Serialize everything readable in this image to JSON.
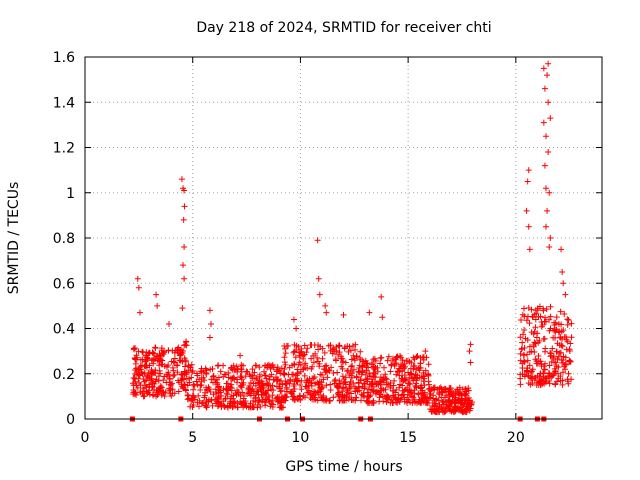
{
  "chart_data": {
    "type": "scatter",
    "title": "Day 218 of 2024, SRMTID for receiver chti",
    "xlabel": "GPS time / hours",
    "ylabel": "SRMTID / TECUs",
    "xlim": [
      0,
      24
    ],
    "ylim": [
      0,
      1.6
    ],
    "xticks": [
      0,
      5,
      10,
      15,
      20
    ],
    "yticks": [
      0,
      0.2,
      0.4,
      0.6,
      0.8,
      1,
      1.2,
      1.4,
      1.6
    ],
    "ytick_labels": [
      "0",
      "0.2",
      "0.4",
      "0.6",
      "0.8",
      "1",
      "1.2",
      "1.4",
      "1.6"
    ],
    "grid": true,
    "marker": "+",
    "color": "#ff0000",
    "baseline_markers_x": [
      2.2,
      4.45,
      8.1,
      9.4,
      10.1,
      12.8,
      13.25,
      20.2,
      21.0,
      21.3
    ],
    "clusters": [
      {
        "x_start": 2.2,
        "x_end": 4.4,
        "y_low": 0.1,
        "y_high": 0.32,
        "count": 220,
        "spikes": [
          [
            2.45,
            0.62
          ],
          [
            2.5,
            0.58
          ],
          [
            2.55,
            0.47
          ],
          [
            3.3,
            0.55
          ],
          [
            3.35,
            0.5
          ],
          [
            3.9,
            0.42
          ]
        ]
      },
      {
        "x_start": 4.4,
        "x_end": 4.75,
        "y_low": 0.12,
        "y_high": 0.35,
        "count": 40,
        "spikes": [
          [
            4.5,
            1.06
          ],
          [
            4.55,
            1.02
          ],
          [
            4.6,
            1.01
          ],
          [
            4.62,
            0.94
          ],
          [
            4.58,
            0.88
          ],
          [
            4.6,
            0.76
          ],
          [
            4.55,
            0.68
          ],
          [
            4.6,
            0.62
          ],
          [
            4.52,
            0.49
          ]
        ]
      },
      {
        "x_start": 4.75,
        "x_end": 9.2,
        "y_low": 0.05,
        "y_high": 0.24,
        "count": 380,
        "spikes": [
          [
            5.8,
            0.48
          ],
          [
            5.85,
            0.42
          ],
          [
            5.8,
            0.36
          ],
          [
            7.2,
            0.28
          ]
        ]
      },
      {
        "x_start": 9.2,
        "x_end": 12.8,
        "y_low": 0.08,
        "y_high": 0.33,
        "count": 330,
        "spikes": [
          [
            9.7,
            0.44
          ],
          [
            9.8,
            0.4
          ],
          [
            10.8,
            0.79
          ],
          [
            10.85,
            0.62
          ],
          [
            10.9,
            0.55
          ],
          [
            11.15,
            0.5
          ],
          [
            11.2,
            0.47
          ],
          [
            12.0,
            0.46
          ]
        ]
      },
      {
        "x_start": 12.8,
        "x_end": 16.0,
        "y_low": 0.07,
        "y_high": 0.28,
        "count": 320,
        "spikes": [
          [
            13.2,
            0.47
          ],
          [
            13.75,
            0.54
          ],
          [
            13.8,
            0.45
          ],
          [
            15.8,
            0.3
          ]
        ]
      },
      {
        "x_start": 16.0,
        "x_end": 18.0,
        "y_low": 0.03,
        "y_high": 0.14,
        "count": 200,
        "spikes": [
          [
            17.9,
            0.33
          ],
          [
            17.85,
            0.3
          ],
          [
            17.9,
            0.25
          ]
        ]
      },
      {
        "x_start": 20.2,
        "x_end": 22.6,
        "y_low": 0.15,
        "y_high": 0.5,
        "count": 240,
        "spikes": [
          [
            20.6,
            1.1
          ],
          [
            20.55,
            1.05
          ],
          [
            20.5,
            0.92
          ],
          [
            20.6,
            0.85
          ],
          [
            20.65,
            0.75
          ],
          [
            21.3,
            1.55
          ],
          [
            21.5,
            1.57
          ],
          [
            21.45,
            1.52
          ],
          [
            21.35,
            1.46
          ],
          [
            21.5,
            1.4
          ],
          [
            21.6,
            1.33
          ],
          [
            21.3,
            1.31
          ],
          [
            21.4,
            1.25
          ],
          [
            21.5,
            1.18
          ],
          [
            21.35,
            1.12
          ],
          [
            21.4,
            1.02
          ],
          [
            21.55,
            1.0
          ],
          [
            21.45,
            0.92
          ],
          [
            21.4,
            0.85
          ],
          [
            21.6,
            0.8
          ],
          [
            21.55,
            0.76
          ],
          [
            22.1,
            0.75
          ],
          [
            22.15,
            0.65
          ],
          [
            22.2,
            0.6
          ],
          [
            22.3,
            0.55
          ]
        ]
      }
    ]
  }
}
